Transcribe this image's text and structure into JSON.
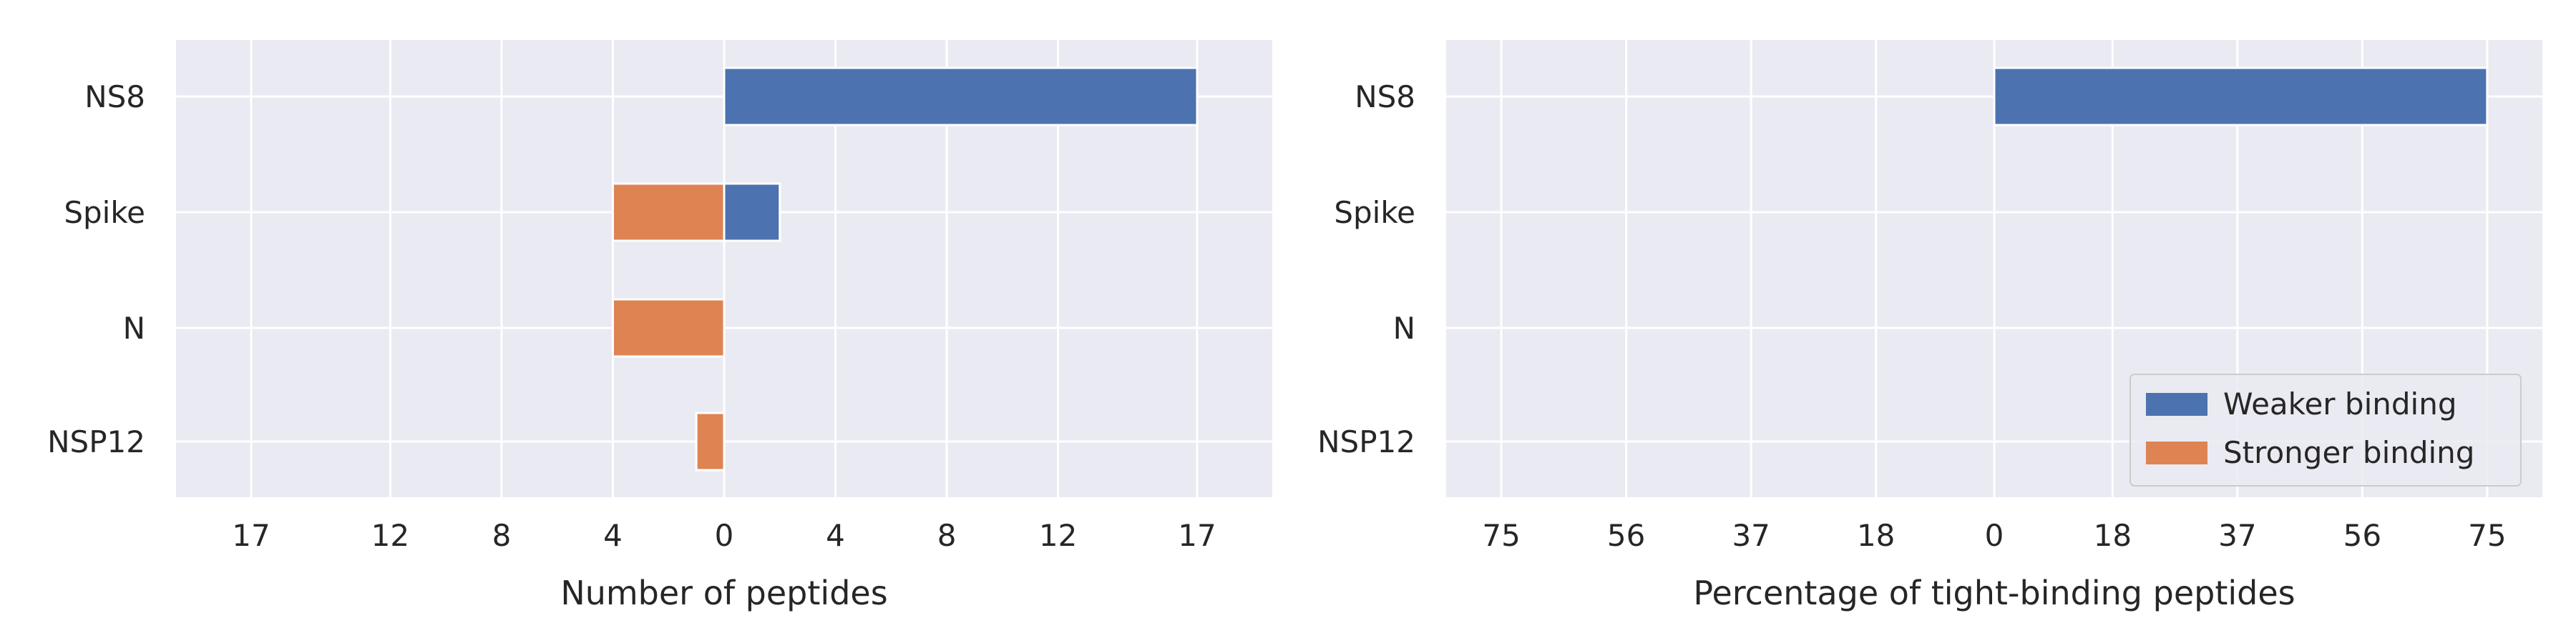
{
  "chart_data": [
    {
      "type": "bar",
      "orientation": "horizontal-diverging",
      "categories": [
        "NS8",
        "Spike",
        "N",
        "NSP12"
      ],
      "series": [
        {
          "name": "Weaker binding",
          "values": [
            17,
            2,
            0,
            0
          ],
          "direction": "right",
          "color": "#4c72b0"
        },
        {
          "name": "Stronger binding",
          "values": [
            0,
            4,
            4,
            1
          ],
          "direction": "left",
          "color": "#dd8452"
        }
      ],
      "xlabel": "Number of peptides",
      "xlim": [
        -19.7,
        19.7
      ],
      "xticks": [
        -17,
        -12,
        -8,
        -4,
        0,
        4,
        8,
        12,
        17
      ],
      "xtick_labels": [
        "17",
        "12",
        "8",
        "4",
        "0",
        "4",
        "8",
        "12",
        "17"
      ],
      "grid": true,
      "legend": false
    },
    {
      "type": "bar",
      "orientation": "horizontal-diverging",
      "categories": [
        "NS8",
        "Spike",
        "N",
        "NSP12"
      ],
      "series": [
        {
          "name": "Weaker binding",
          "values": [
            75,
            0,
            0,
            0
          ],
          "direction": "right",
          "color": "#4c72b0"
        },
        {
          "name": "Stronger binding",
          "values": [
            0,
            0,
            0,
            0
          ],
          "direction": "left",
          "color": "#dd8452"
        }
      ],
      "xlabel": "Percentage of tight-binding peptides",
      "xlim": [
        -83.4,
        83.4
      ],
      "xticks": [
        -75,
        -56,
        -37,
        -18,
        0,
        18,
        37,
        56,
        75
      ],
      "xtick_labels": [
        "75",
        "56",
        "37",
        "18",
        "0",
        "18",
        "37",
        "56",
        "75"
      ],
      "grid": true,
      "legend": true,
      "legend_position": "lower-right"
    }
  ],
  "theme": {
    "background": "#eaeaf2",
    "grid": "#ffffff"
  }
}
